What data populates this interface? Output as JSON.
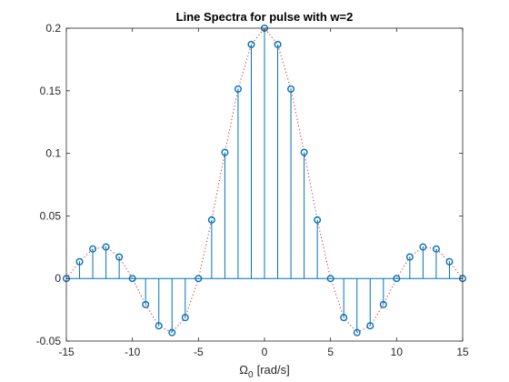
{
  "chart_data": {
    "type": "stem",
    "title": "Line Spectra for pulse with w=2",
    "xlabel": "Ω",
    "xlabel_sub": "0",
    "xlabel_unit": "[rad/s]",
    "ylabel": "",
    "xlim": [
      -15,
      15
    ],
    "ylim": [
      -0.05,
      0.2
    ],
    "xticks": [
      -15,
      -10,
      -5,
      0,
      5,
      10,
      15
    ],
    "xtick_labels": [
      "-15",
      "-10",
      "-5",
      "0",
      "5",
      "10",
      "15"
    ],
    "yticks": [
      -0.05,
      0,
      0.05,
      0.1,
      0.15,
      0.2
    ],
    "ytick_labels": [
      "-0.05",
      "0",
      "0.05",
      "0.1",
      "0.15",
      "0.2"
    ],
    "grid": false,
    "series": [
      {
        "style": "stem",
        "color": "#0072BD",
        "marker": "circle",
        "x": [
          -15,
          -14,
          -13,
          -12,
          -11,
          -10,
          -9,
          -8,
          -7,
          -6,
          -5,
          -4,
          -3,
          -2,
          -1,
          0,
          1,
          2,
          3,
          4,
          5,
          6,
          7,
          8,
          9,
          10,
          11,
          12,
          13,
          14,
          15
        ],
        "values": [
          0,
          0.0134,
          0.0236,
          0.0252,
          0.0172,
          0,
          -0.0208,
          -0.0378,
          -0.0432,
          -0.0312,
          0,
          0.0468,
          0.1008,
          0.1514,
          0.187,
          0.2,
          0.187,
          0.1514,
          0.1008,
          0.0468,
          0,
          -0.0312,
          -0.0432,
          -0.0378,
          -0.0208,
          0,
          0.0172,
          0.0252,
          0.0236,
          0.0134,
          0
        ]
      },
      {
        "style": "dotted-line",
        "color": "#D62728",
        "x": [
          -15,
          -14,
          -13,
          -12,
          -11,
          -10,
          -9,
          -8,
          -7,
          -6,
          -5,
          -4,
          -3,
          -2,
          -1,
          0,
          1,
          2,
          3,
          4,
          5,
          6,
          7,
          8,
          9,
          10,
          11,
          12,
          13,
          14,
          15
        ],
        "values": [
          0,
          0.0134,
          0.0236,
          0.0252,
          0.0172,
          0,
          -0.0208,
          -0.0378,
          -0.0432,
          -0.0312,
          0,
          0.0468,
          0.1008,
          0.1514,
          0.187,
          0.2,
          0.187,
          0.1514,
          0.1008,
          0.0468,
          0,
          -0.0312,
          -0.0432,
          -0.0378,
          -0.0208,
          0,
          0.0172,
          0.0252,
          0.0236,
          0.0134,
          0
        ]
      }
    ]
  }
}
